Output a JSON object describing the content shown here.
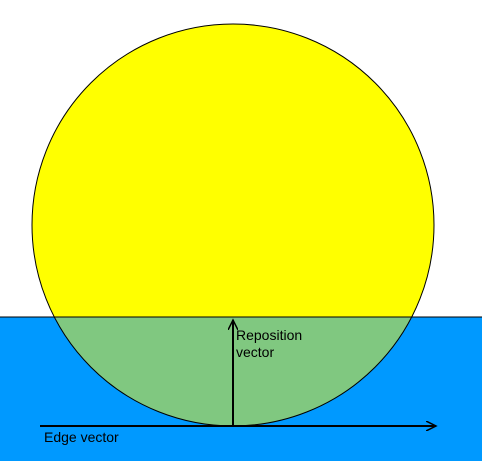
{
  "colors": {
    "background": "#ffffff",
    "water": "#0099ff",
    "circle": "#ffff00",
    "overlap": "#80c880",
    "stroke": "#000000"
  },
  "labels": {
    "reposition_line1": "Reposition",
    "reposition_line2": "vector",
    "edge": "Edge vector"
  }
}
